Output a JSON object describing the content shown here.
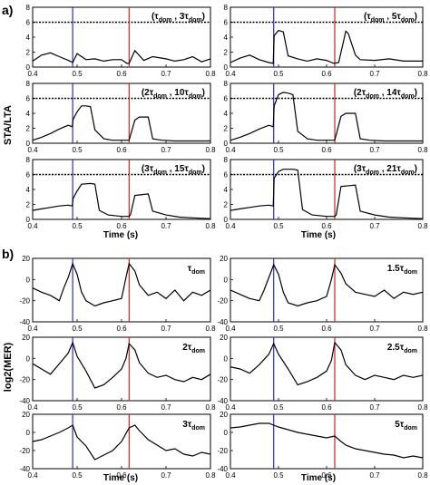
{
  "section_a": {
    "label": "a)",
    "ylabel": "STA/LTA",
    "xlabel": "Time (s)",
    "xlim": [
      0.4,
      0.8
    ],
    "ylim": [
      0,
      8
    ],
    "xticks": [
      "0.4",
      "0.5",
      "0.6",
      "0.7",
      "0.8"
    ],
    "yticks": [
      "0",
      "2",
      "4",
      "6",
      "8"
    ],
    "threshold": 6,
    "blue_line_x": 0.49,
    "red_line_x": 0.617,
    "colors": {
      "trace": "#000000",
      "blue": "#2a2ad0",
      "red": "#d02020",
      "threshold": "#000000"
    }
  },
  "section_b": {
    "label": "b)",
    "ylabel": "log2(MER)",
    "xlabel": "Time (s)",
    "xlim": [
      0.4,
      0.8
    ],
    "ylim": [
      -40,
      20
    ],
    "xticks": [
      "0.4",
      "0.5",
      "0.6",
      "0.7",
      "0.8"
    ],
    "yticks": [
      "-40",
      "-20",
      "0",
      "20"
    ],
    "blue_line_x": 0.49,
    "red_line_x": 0.617
  },
  "chart_data": [
    {
      "type": "line",
      "panel": "a1",
      "annotation": {
        "w1": "τ",
        "s1": "dom",
        "w2": "3τ",
        "s2": "dom"
      },
      "series": [
        {
          "x": [
            0.4,
            0.42,
            0.44,
            0.46,
            0.48,
            0.49,
            0.5,
            0.52,
            0.54,
            0.56,
            0.58,
            0.6,
            0.612,
            0.617,
            0.63,
            0.65,
            0.67,
            0.7,
            0.72,
            0.74,
            0.76,
            0.78,
            0.8
          ],
          "y": [
            0.8,
            1.6,
            1.9,
            1.4,
            0.9,
            0.6,
            1.8,
            1.0,
            1.1,
            0.8,
            1.0,
            1.0,
            0.5,
            0.5,
            2.2,
            0.9,
            1.4,
            1.1,
            0.8,
            1.0,
            1.4,
            0.7,
            1.1
          ]
        }
      ]
    },
    {
      "type": "line",
      "panel": "a2",
      "annotation": {
        "w1": "τ",
        "s1": "dom",
        "w2": "5τ",
        "s2": "dom"
      },
      "series": [
        {
          "x": [
            0.4,
            0.42,
            0.44,
            0.46,
            0.48,
            0.489,
            0.491,
            0.5,
            0.51,
            0.52,
            0.54,
            0.56,
            0.58,
            0.6,
            0.615,
            0.625,
            0.64,
            0.645,
            0.66,
            0.67,
            0.7,
            0.73,
            0.76,
            0.8
          ],
          "y": [
            0.6,
            1.2,
            1.6,
            1.0,
            0.6,
            0.5,
            4.2,
            4.9,
            4.7,
            1.5,
            1.1,
            0.8,
            1.1,
            0.9,
            0.5,
            0.6,
            4.8,
            4.5,
            1.6,
            1.0,
            0.9,
            1.1,
            0.8,
            0.8
          ]
        }
      ]
    },
    {
      "type": "line",
      "panel": "a3",
      "annotation": {
        "w1": "2τ",
        "s1": "dom",
        "w2": "10τ",
        "s2": "dom"
      },
      "series": [
        {
          "x": [
            0.4,
            0.42,
            0.44,
            0.46,
            0.48,
            0.489,
            0.491,
            0.5,
            0.51,
            0.52,
            0.53,
            0.54,
            0.56,
            0.58,
            0.6,
            0.617,
            0.63,
            0.64,
            0.66,
            0.67,
            0.69,
            0.72,
            0.76,
            0.8
          ],
          "y": [
            0.4,
            0.8,
            1.3,
            1.9,
            2.4,
            2.2,
            3.2,
            4.2,
            5.0,
            5.0,
            4.9,
            1.8,
            0.6,
            0.4,
            0.4,
            0.4,
            3.1,
            3.5,
            3.5,
            0.6,
            0.4,
            0.3,
            0.3,
            0.3
          ]
        }
      ]
    },
    {
      "type": "line",
      "panel": "a4",
      "annotation": {
        "w1": "2τ",
        "s1": "dom",
        "w2": "14τ",
        "s2": "dom"
      },
      "series": [
        {
          "x": [
            0.4,
            0.42,
            0.44,
            0.46,
            0.48,
            0.489,
            0.491,
            0.5,
            0.51,
            0.52,
            0.53,
            0.54,
            0.56,
            0.58,
            0.6,
            0.617,
            0.63,
            0.64,
            0.66,
            0.67,
            0.69,
            0.72,
            0.76,
            0.8
          ],
          "y": [
            0.4,
            0.8,
            1.3,
            1.9,
            2.4,
            2.2,
            5.0,
            6.5,
            6.8,
            6.7,
            6.5,
            1.6,
            0.6,
            0.4,
            0.4,
            0.4,
            3.6,
            4.0,
            4.0,
            0.6,
            0.4,
            0.3,
            0.3,
            0.3
          ]
        }
      ]
    },
    {
      "type": "line",
      "panel": "a5",
      "annotation": {
        "w1": "3τ",
        "s1": "dom",
        "w2": "15τ",
        "s2": "dom"
      },
      "series": [
        {
          "x": [
            0.4,
            0.42,
            0.44,
            0.46,
            0.48,
            0.489,
            0.491,
            0.5,
            0.51,
            0.53,
            0.54,
            0.55,
            0.57,
            0.6,
            0.617,
            0.62,
            0.63,
            0.66,
            0.67,
            0.7,
            0.73,
            0.76,
            0.8
          ],
          "y": [
            1.2,
            1.4,
            1.6,
            1.8,
            1.9,
            1.8,
            2.8,
            3.8,
            4.7,
            4.8,
            4.7,
            1.2,
            0.6,
            0.4,
            0.4,
            0.6,
            3.2,
            3.4,
            1.1,
            0.6,
            0.3,
            0.2,
            0.1
          ]
        }
      ]
    },
    {
      "type": "line",
      "panel": "a6",
      "annotation": {
        "w1": "3τ",
        "s1": "dom",
        "w2": "21τ",
        "s2": "dom"
      },
      "series": [
        {
          "x": [
            0.4,
            0.42,
            0.44,
            0.46,
            0.48,
            0.489,
            0.491,
            0.5,
            0.51,
            0.53,
            0.54,
            0.55,
            0.57,
            0.6,
            0.617,
            0.62,
            0.63,
            0.66,
            0.67,
            0.7,
            0.73,
            0.76,
            0.8
          ],
          "y": [
            1.2,
            1.4,
            1.6,
            1.8,
            1.9,
            1.8,
            5.5,
            6.4,
            6.7,
            6.7,
            6.6,
            1.3,
            0.6,
            0.4,
            0.4,
            0.6,
            4.4,
            4.6,
            1.1,
            0.6,
            0.3,
            0.2,
            0.1
          ]
        }
      ]
    },
    {
      "type": "line",
      "panel": "b1",
      "annotation": {
        "w1": "τ",
        "s1": "dom",
        "w2": "",
        "s2": ""
      },
      "series": [
        {
          "x": [
            0.4,
            0.42,
            0.44,
            0.46,
            0.47,
            0.48,
            0.49,
            0.5,
            0.51,
            0.52,
            0.54,
            0.56,
            0.58,
            0.6,
            0.61,
            0.617,
            0.63,
            0.64,
            0.66,
            0.68,
            0.7,
            0.72,
            0.74,
            0.76,
            0.78,
            0.8
          ],
          "y": [
            -8,
            -12,
            -15,
            -20,
            -8,
            2,
            15,
            5,
            -12,
            -20,
            -25,
            -22,
            -20,
            -18,
            2,
            15,
            8,
            -5,
            -15,
            -12,
            -18,
            -10,
            -20,
            -12,
            -15,
            -10
          ]
        }
      ]
    },
    {
      "type": "line",
      "panel": "b2",
      "annotation": {
        "w1": "1.5τ",
        "s1": "dom",
        "w2": "",
        "s2": ""
      },
      "series": [
        {
          "x": [
            0.4,
            0.42,
            0.44,
            0.46,
            0.47,
            0.48,
            0.49,
            0.5,
            0.51,
            0.52,
            0.54,
            0.56,
            0.58,
            0.6,
            0.61,
            0.617,
            0.63,
            0.64,
            0.66,
            0.68,
            0.7,
            0.72,
            0.74,
            0.76,
            0.78,
            0.8
          ],
          "y": [
            -10,
            -14,
            -18,
            -20,
            -10,
            2,
            14,
            5,
            -12,
            -22,
            -25,
            -22,
            -20,
            -16,
            0,
            14,
            6,
            -4,
            -12,
            -14,
            -16,
            -10,
            -18,
            -12,
            -14,
            -12
          ]
        }
      ]
    },
    {
      "type": "line",
      "panel": "b3",
      "annotation": {
        "w1": "2τ",
        "s1": "dom",
        "w2": "",
        "s2": ""
      },
      "series": [
        {
          "x": [
            0.4,
            0.42,
            0.44,
            0.46,
            0.48,
            0.49,
            0.5,
            0.52,
            0.54,
            0.56,
            0.58,
            0.6,
            0.61,
            0.617,
            0.63,
            0.64,
            0.66,
            0.68,
            0.7,
            0.72,
            0.74,
            0.76,
            0.78,
            0.8
          ],
          "y": [
            -5,
            -10,
            -15,
            -5,
            5,
            15,
            2,
            -12,
            -28,
            -25,
            -18,
            -10,
            0,
            14,
            8,
            -4,
            -14,
            -18,
            -16,
            -20,
            -22,
            -18,
            -20,
            -15
          ]
        }
      ]
    },
    {
      "type": "line",
      "panel": "b4",
      "annotation": {
        "w1": "2.5τ",
        "s1": "dom",
        "w2": "",
        "s2": ""
      },
      "series": [
        {
          "x": [
            0.4,
            0.42,
            0.44,
            0.46,
            0.48,
            0.49,
            0.5,
            0.52,
            0.54,
            0.56,
            0.58,
            0.6,
            0.61,
            0.617,
            0.63,
            0.64,
            0.66,
            0.68,
            0.7,
            0.72,
            0.74,
            0.76,
            0.78,
            0.8
          ],
          "y": [
            -8,
            -10,
            -14,
            -6,
            4,
            14,
            4,
            -10,
            -25,
            -22,
            -18,
            -12,
            -2,
            15,
            8,
            -6,
            -16,
            -20,
            -16,
            -18,
            -20,
            -16,
            -18,
            -16
          ]
        }
      ]
    },
    {
      "type": "line",
      "panel": "b5",
      "annotation": {
        "w1": "3τ",
        "s1": "dom",
        "w2": "",
        "s2": ""
      },
      "series": [
        {
          "x": [
            0.4,
            0.42,
            0.44,
            0.46,
            0.48,
            0.49,
            0.5,
            0.52,
            0.54,
            0.56,
            0.58,
            0.6,
            0.617,
            0.63,
            0.64,
            0.66,
            0.68,
            0.7,
            0.72,
            0.74,
            0.76,
            0.78,
            0.8
          ],
          "y": [
            -10,
            -8,
            -4,
            0,
            5,
            8,
            -5,
            -15,
            -30,
            -25,
            -20,
            -10,
            5,
            8,
            2,
            -8,
            -14,
            -20,
            -18,
            -24,
            -26,
            -22,
            -24
          ]
        }
      ]
    },
    {
      "type": "line",
      "panel": "b6",
      "annotation": {
        "w1": "5τ",
        "s1": "dom",
        "w2": "",
        "s2": ""
      },
      "series": [
        {
          "x": [
            0.4,
            0.42,
            0.44,
            0.46,
            0.48,
            0.49,
            0.5,
            0.52,
            0.54,
            0.56,
            0.58,
            0.6,
            0.617,
            0.63,
            0.64,
            0.66,
            0.68,
            0.7,
            0.72,
            0.74,
            0.76,
            0.78,
            0.8
          ],
          "y": [
            5,
            6,
            8,
            10,
            10,
            8,
            6,
            3,
            0,
            -2,
            -4,
            -6,
            -4,
            -10,
            -14,
            -18,
            -20,
            -22,
            -24,
            -25,
            -28,
            -26,
            -28
          ]
        }
      ]
    }
  ]
}
